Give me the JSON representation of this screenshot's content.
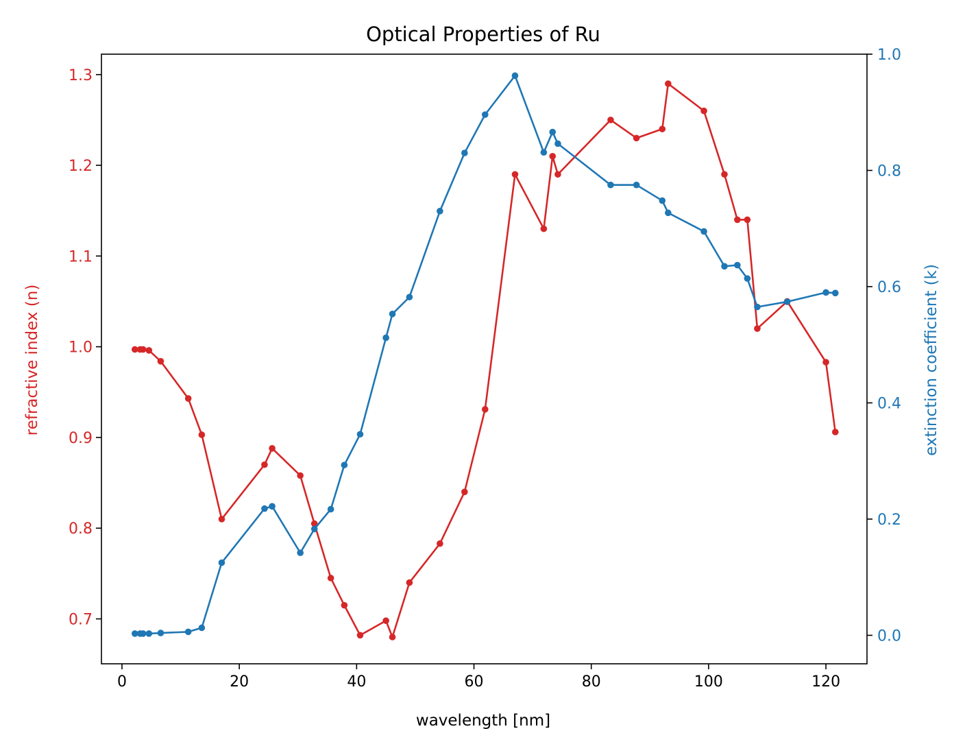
{
  "chart_data": {
    "type": "line",
    "title": "Optical Properties of Ru",
    "xlabel": "wavelength [nm]",
    "xlim": [
      -3.5,
      127
    ],
    "xticks": [
      0,
      20,
      40,
      60,
      80,
      100,
      120
    ],
    "grid": false,
    "y_left": {
      "label": "refractive index (n)",
      "color": "#d62728",
      "lim": [
        0.6505,
        1.3225
      ],
      "ticks": [
        "0.7",
        "0.8",
        "0.9",
        "1.0",
        "1.1",
        "1.2",
        "1.3"
      ]
    },
    "y_right": {
      "label": "extinction coefficient (k)",
      "color": "#1f77b4",
      "lim": [
        -0.049,
        1.0
      ],
      "ticks": [
        "0.0",
        "0.2",
        "0.4",
        "0.6",
        "0.8",
        "1.0"
      ]
    },
    "series": [
      {
        "axis": "left",
        "color": "#d62728",
        "x": [
          2.2,
          3.1,
          3.6,
          4.6,
          6.6,
          11.3,
          13.6,
          17.0,
          24.3,
          25.6,
          30.4,
          32.8,
          35.6,
          37.9,
          40.6,
          45.0,
          46.1,
          49.0,
          54.2,
          58.4,
          61.9,
          67.0,
          71.9,
          73.4,
          74.3,
          83.3,
          87.7,
          92.1,
          93.1,
          99.2,
          102.7,
          104.9,
          106.6,
          108.3,
          113.4,
          120.0,
          121.6
        ],
        "y": [
          0.997,
          0.997,
          0.997,
          0.996,
          0.984,
          0.943,
          0.903,
          0.81,
          0.87,
          0.888,
          0.858,
          0.805,
          0.745,
          0.715,
          0.682,
          0.698,
          0.68,
          0.74,
          0.783,
          0.84,
          0.931,
          1.19,
          1.13,
          1.21,
          1.19,
          1.25,
          1.23,
          1.24,
          1.29,
          1.26,
          1.19,
          1.14,
          1.14,
          1.02,
          1.05,
          0.983,
          0.906
        ]
      },
      {
        "axis": "right",
        "color": "#1f77b4",
        "x": [
          2.2,
          3.1,
          3.6,
          4.6,
          6.6,
          11.3,
          13.6,
          17.0,
          24.3,
          25.6,
          30.4,
          32.8,
          35.6,
          37.9,
          40.6,
          45.0,
          46.1,
          49.0,
          54.2,
          58.4,
          61.9,
          67.0,
          71.9,
          73.4,
          74.3,
          83.3,
          87.7,
          92.1,
          93.1,
          99.2,
          102.7,
          104.9,
          106.6,
          108.3,
          113.4,
          120.0,
          121.6
        ],
        "y": [
          0.003,
          0.003,
          0.003,
          0.003,
          0.004,
          0.006,
          0.013,
          0.125,
          0.218,
          0.222,
          0.142,
          0.183,
          0.217,
          0.293,
          0.346,
          0.512,
          0.553,
          0.582,
          0.73,
          0.83,
          0.896,
          0.963,
          0.831,
          0.866,
          0.846,
          0.775,
          0.775,
          0.748,
          0.727,
          0.695,
          0.635,
          0.637,
          0.614,
          0.565,
          0.574,
          0.59,
          0.589
        ]
      }
    ]
  }
}
